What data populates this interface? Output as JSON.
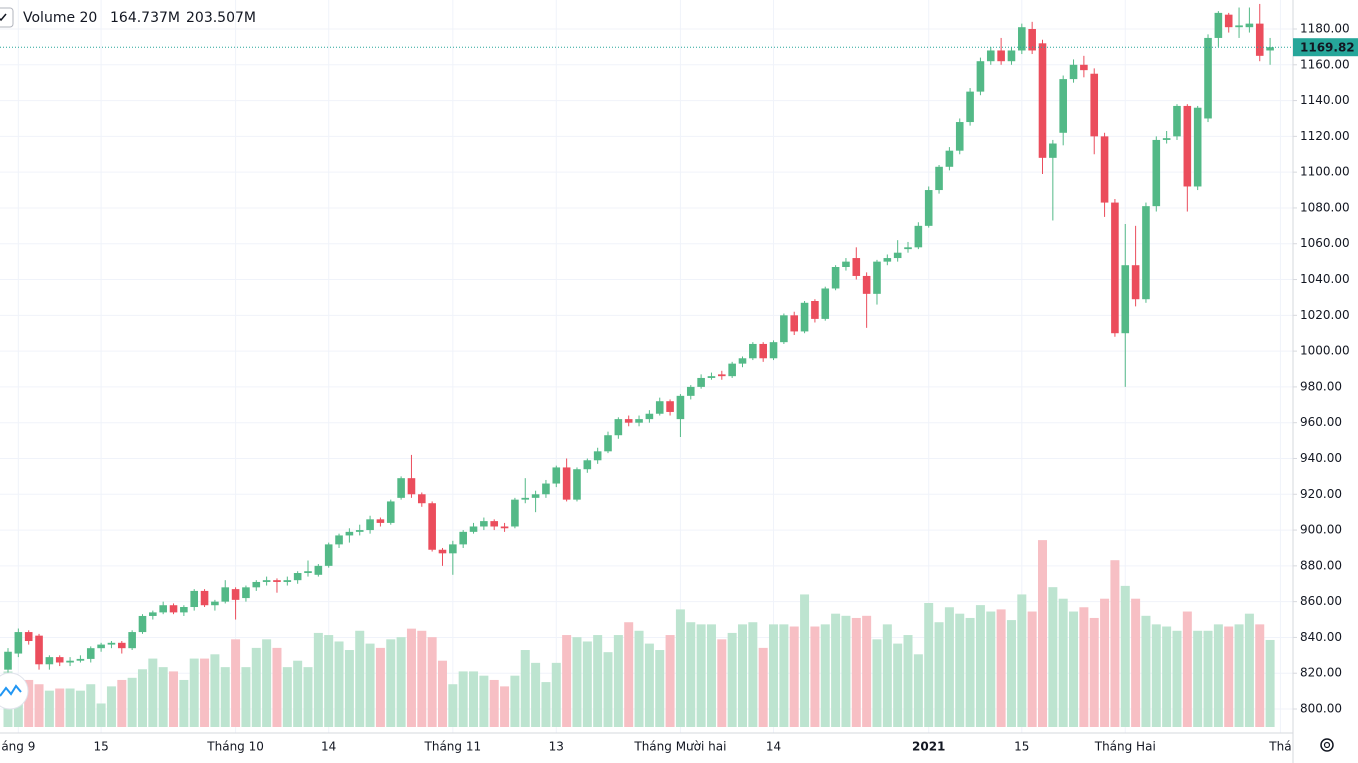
{
  "chart_data": {
    "type": "candlestick",
    "categories": [
      null,
      "áng 9",
      null,
      null,
      null,
      null,
      null,
      null,
      null,
      "15",
      null,
      null,
      null,
      null,
      null,
      null,
      null,
      null,
      null,
      null,
      null,
      null,
      "Tháng 10",
      null,
      null,
      null,
      null,
      null,
      null,
      null,
      null,
      "14",
      null,
      null,
      null,
      null,
      null,
      null,
      null,
      null,
      null,
      null,
      null,
      "Tháng 11",
      null,
      null,
      null,
      null,
      null,
      null,
      null,
      null,
      null,
      "13",
      null,
      null,
      null,
      null,
      null,
      null,
      null,
      null,
      null,
      null,
      null,
      "Tháng Mười hai",
      null,
      null,
      null,
      null,
      null,
      null,
      null,
      null,
      "14",
      null,
      null,
      null,
      null,
      null,
      null,
      null,
      null,
      null,
      null,
      null,
      null,
      null,
      null,
      "2021",
      null,
      null,
      null,
      null,
      null,
      null,
      null,
      null,
      "15",
      null,
      null,
      null,
      null,
      null,
      null,
      null,
      null,
      null,
      "Tháng Hai",
      null,
      null,
      null,
      null,
      null,
      null,
      null,
      null,
      null,
      null,
      null,
      null,
      null,
      null,
      "Thá"
    ],
    "open": [
      822,
      831,
      843,
      841,
      825,
      829,
      826,
      827,
      828,
      834,
      836,
      837,
      834,
      843,
      852,
      854,
      858,
      854,
      857,
      866,
      858,
      860,
      867,
      862,
      868,
      871,
      872,
      871,
      872,
      876,
      875,
      880,
      892,
      897,
      899,
      900,
      906,
      904,
      918,
      929,
      920,
      915,
      889,
      887,
      892,
      899,
      902,
      905,
      902,
      902,
      917,
      918,
      920,
      926,
      935,
      917,
      934,
      939,
      944,
      953,
      962,
      960,
      962,
      965,
      972,
      962,
      975,
      980,
      985,
      987,
      986,
      993,
      996,
      1004,
      996,
      1005,
      1020,
      1011,
      1028,
      1018,
      1035,
      1047,
      1052,
      1042,
      1032,
      1050,
      1052,
      1057,
      1058,
      1070,
      1090,
      1103,
      1112,
      1128,
      1145,
      1162,
      1168,
      1162,
      1168,
      1180,
      1172,
      1108,
      1122,
      1152,
      1160,
      1155,
      1120,
      1083,
      1010,
      1048,
      1029,
      1081,
      1118,
      1120,
      1137,
      1092,
      1130,
      1175,
      1188,
      1181,
      1181,
      1183,
      1168,
      null
    ],
    "high": [
      834,
      845,
      844,
      842,
      830,
      830,
      829,
      830,
      835,
      837,
      838,
      838,
      844,
      853,
      855,
      860,
      859,
      858,
      867,
      867,
      861,
      872,
      868,
      869,
      872,
      874,
      873,
      874,
      877,
      883,
      881,
      893,
      898,
      901,
      903,
      908,
      907,
      917,
      930,
      942,
      921,
      916,
      890,
      894,
      900,
      904,
      907,
      906,
      904,
      918,
      929,
      922,
      928,
      936,
      940,
      935,
      940,
      946,
      955,
      963,
      964,
      964,
      967,
      974,
      973,
      976,
      981,
      987,
      988,
      989,
      994,
      997,
      1005,
      1005,
      1006,
      1021,
      1022,
      1028,
      1029,
      1036,
      1048,
      1052,
      1058,
      1044,
      1051,
      1054,
      1062,
      1061,
      1072,
      1092,
      1104,
      1114,
      1130,
      1147,
      1164,
      1170,
      1175,
      1170,
      1183,
      1184,
      1174,
      1118,
      1154,
      1163,
      1165,
      1158,
      1122,
      1085,
      1071,
      1070,
      1083,
      1120,
      1123,
      1138,
      1138,
      1137,
      1177,
      1190,
      1189,
      1192,
      1192,
      1194,
      1175,
      null
    ],
    "low": [
      820,
      829,
      836,
      822,
      822,
      824,
      824,
      826,
      826,
      832,
      834,
      831,
      833,
      842,
      850,
      853,
      853,
      852,
      855,
      857,
      855,
      859,
      850,
      860,
      866,
      869,
      865,
      869,
      870,
      874,
      874,
      879,
      890,
      893,
      897,
      898,
      902,
      903,
      917,
      918,
      913,
      888,
      880,
      875,
      890,
      898,
      900,
      900,
      899,
      901,
      915,
      910,
      918,
      924,
      916,
      916,
      932,
      937,
      943,
      951,
      958,
      958,
      960,
      964,
      964,
      952,
      973,
      979,
      984,
      984,
      985,
      991,
      995,
      994,
      995,
      1004,
      1009,
      1010,
      1016,
      1017,
      1034,
      1045,
      1040,
      1013,
      1026,
      1048,
      1050,
      1055,
      1057,
      1069,
      1088,
      1101,
      1110,
      1126,
      1143,
      1160,
      1160,
      1160,
      1166,
      1166,
      1099,
      1073,
      1115,
      1150,
      1153,
      1110,
      1075,
      1008,
      980,
      1025,
      1027,
      1078,
      1116,
      1118,
      1078,
      1090,
      1128,
      1170,
      1178,
      1175,
      1178,
      1162,
      1160,
      null
    ],
    "close": [
      832,
      843,
      838,
      825,
      829,
      826,
      827,
      828,
      834,
      836,
      837,
      834,
      843,
      852,
      854,
      858,
      854,
      857,
      866,
      858,
      860,
      868,
      861,
      868,
      871,
      872,
      871,
      872,
      876,
      877,
      880,
      892,
      897,
      899,
      900,
      906,
      904,
      916,
      929,
      920,
      915,
      889,
      887,
      892,
      899,
      902,
      905,
      902,
      901,
      917,
      918,
      920,
      926,
      935,
      917,
      934,
      939,
      944,
      953,
      962,
      960,
      962,
      965,
      972,
      966,
      975,
      980,
      985,
      986,
      986,
      993,
      996,
      1004,
      996,
      1005,
      1020,
      1011,
      1027,
      1018,
      1035,
      1047,
      1050,
      1042,
      1032,
      1050,
      1052,
      1055,
      1058,
      1070,
      1090,
      1103,
      1112,
      1128,
      1145,
      1162,
      1168,
      1162,
      1168,
      1181,
      1168,
      1108,
      1116,
      1152,
      1160,
      1157,
      1120,
      1083,
      1010,
      1048,
      1029,
      1081,
      1118,
      1119,
      1137,
      1092,
      1136,
      1175,
      1189,
      1181,
      1182,
      1183,
      1165,
      1169.82,
      null
    ],
    "volume": [
      130,
      110,
      110,
      100,
      85,
      90,
      90,
      85,
      100,
      55,
      95,
      110,
      115,
      135,
      160,
      140,
      130,
      110,
      160,
      160,
      170,
      140,
      205,
      140,
      185,
      205,
      185,
      140,
      155,
      140,
      220,
      215,
      200,
      180,
      225,
      195,
      185,
      205,
      210,
      230,
      225,
      210,
      155,
      100,
      130,
      130,
      120,
      110,
      95,
      120,
      180,
      150,
      105,
      150,
      215,
      210,
      200,
      215,
      175,
      215,
      245,
      225,
      195,
      180,
      215,
      275,
      245,
      240,
      240,
      205,
      220,
      240,
      245,
      185,
      240,
      240,
      235,
      310,
      235,
      240,
      265,
      260,
      255,
      260,
      205,
      240,
      195,
      215,
      170,
      290,
      245,
      280,
      265,
      255,
      285,
      270,
      275,
      250,
      310,
      270,
      437,
      327,
      300,
      270,
      280,
      255,
      300,
      390,
      330,
      300,
      260,
      240,
      235,
      225,
      270,
      225,
      225,
      240,
      235,
      240,
      265,
      240,
      203.507,
      null
    ],
    "ylim": [
      786.6,
      1196.2
    ],
    "yticks": [
      {
        "value": 800,
        "label": "800.00"
      },
      {
        "value": 820,
        "label": "820.00"
      },
      {
        "value": 840,
        "label": "840.00"
      },
      {
        "value": 860,
        "label": "860.00"
      },
      {
        "value": 880,
        "label": "880.00"
      },
      {
        "value": 900,
        "label": "900.00"
      },
      {
        "value": 920,
        "label": "920.00"
      },
      {
        "value": 940,
        "label": "940.00"
      },
      {
        "value": 960,
        "label": "960.00"
      },
      {
        "value": 980,
        "label": "980.00"
      },
      {
        "value": 1000,
        "label": "1000.00"
      },
      {
        "value": 1020,
        "label": "1020.00"
      },
      {
        "value": 1040,
        "label": "1040.00"
      },
      {
        "value": 1060,
        "label": "1060.00"
      },
      {
        "value": 1080,
        "label": "1080.00"
      },
      {
        "value": 1100,
        "label": "1100.00"
      },
      {
        "value": 1120,
        "label": "1120.00"
      },
      {
        "value": 1140,
        "label": "1140.00"
      },
      {
        "value": 1160,
        "label": "1160.00"
      },
      {
        "value": 1180,
        "label": "1180.00"
      }
    ],
    "volume_ylim": [
      0,
      1700
    ],
    "last_price": 1169.82,
    "indicator": {
      "name": "Volume 20",
      "values": [
        "164.737M",
        "203.507M"
      ],
      "colors": [
        "#26a69a",
        "#2196f3"
      ]
    },
    "up_color": "#53b987",
    "down_color": "#eb4d5c",
    "volume_up_color": "#bde4d0",
    "volume_down_color": "#f7bfc4",
    "grid": true
  }
}
